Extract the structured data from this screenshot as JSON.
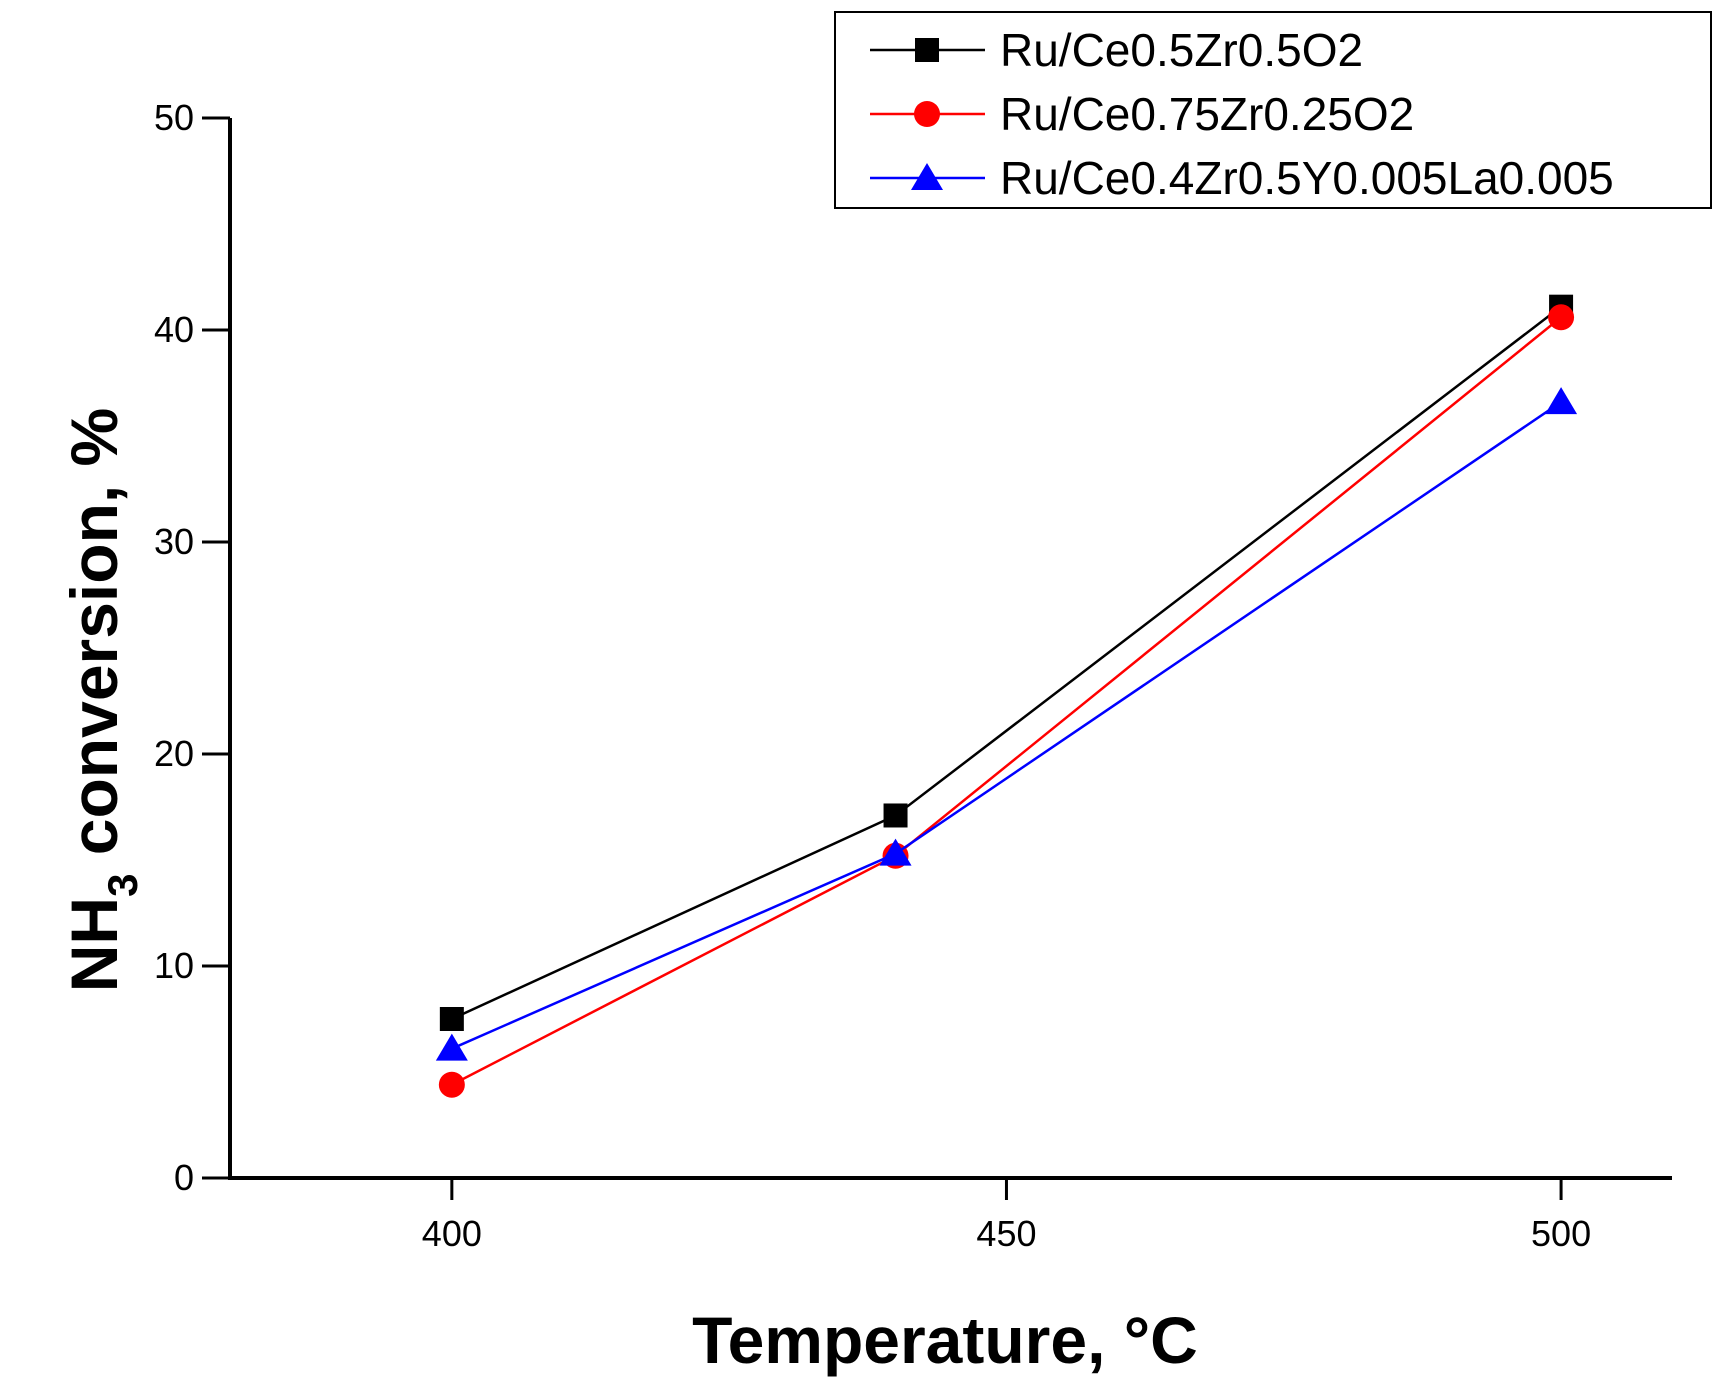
{
  "chart_data": {
    "type": "line",
    "title": "",
    "xlabel": "Temperature, °C",
    "ylabel_main": "NH",
    "ylabel_sub": "3",
    "ylabel_rest": " conversion, %",
    "xlim": [
      380,
      510
    ],
    "ylim": [
      0,
      50
    ],
    "xticks": [
      400,
      450,
      500
    ],
    "yticks": [
      0,
      10,
      20,
      30,
      40,
      50
    ],
    "grid": false,
    "legend_position": "top-right",
    "x": [
      400,
      440,
      500
    ],
    "series": [
      {
        "name": "Ru/Ce0.5Zr0.5O2",
        "values": [
          7.5,
          17.1,
          41.1
        ],
        "color": "#000000",
        "marker": "square"
      },
      {
        "name": "Ru/Ce0.75Zr0.25O2",
        "values": [
          4.4,
          15.2,
          40.6
        ],
        "color": "#ff0000",
        "marker": "circle"
      },
      {
        "name": "Ru/Ce0.4Zr0.5Y0.005La0.005",
        "values": [
          6.1,
          15.3,
          36.6
        ],
        "color": "#0000ff",
        "marker": "triangle"
      }
    ]
  }
}
